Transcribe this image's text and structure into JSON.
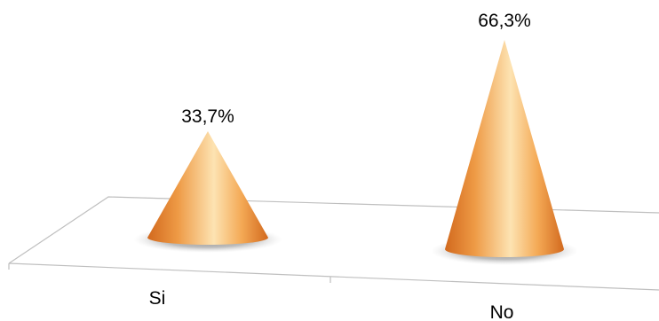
{
  "chart_data": {
    "type": "bar",
    "style": "3d-cone",
    "categories": [
      "Si",
      "No"
    ],
    "values": [
      33.7,
      66.3
    ],
    "data_labels": [
      "33,7%",
      "66,3%"
    ],
    "unit": "%",
    "title": "",
    "xlabel": "",
    "ylabel": "",
    "ylim": [
      0,
      66.3
    ],
    "grid": false,
    "legend": "none",
    "colors": {
      "cone_dark": "#d9772c",
      "cone_mid": "#f7b763",
      "cone_light": "#fde3b2",
      "shadow": "#9e9e9e",
      "floor_line": "#bfbfbf"
    }
  }
}
